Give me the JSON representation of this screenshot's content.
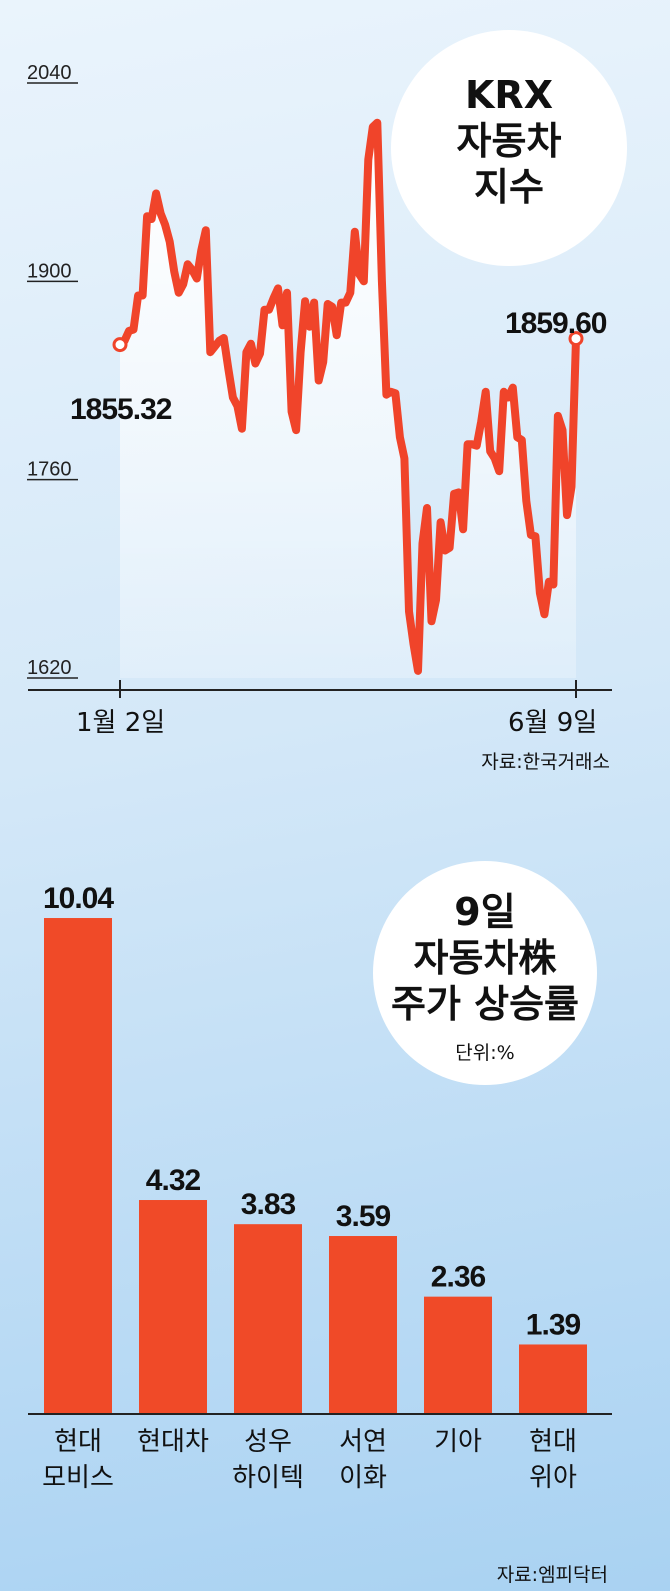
{
  "chart_data": [
    {
      "type": "line",
      "title": "KRX\n자동차\n지수",
      "yticks": [
        2040,
        1900,
        1760,
        1620
      ],
      "ylim": [
        1620,
        2040
      ],
      "x_labels": [
        "1월 2일",
        "6월 9일"
      ],
      "start_label": "1855.32",
      "end_label": "1859.60",
      "source": "자료:한국거래소",
      "values": [
        1855.32,
        1858,
        1865,
        1866,
        1890,
        1890,
        1946,
        1944,
        1962,
        1948,
        1940,
        1928,
        1907,
        1892,
        1898,
        1912,
        1908,
        1902,
        1922,
        1936,
        1850,
        1854,
        1858,
        1860,
        1838,
        1818,
        1812,
        1796,
        1850,
        1856,
        1842,
        1849,
        1880,
        1880,
        1888,
        1895,
        1869,
        1892,
        1808,
        1795,
        1850,
        1886,
        1868,
        1885,
        1830,
        1843,
        1884,
        1882,
        1862,
        1885,
        1885,
        1892,
        1935,
        1905,
        1900,
        1986,
        2009,
        2012,
        1900,
        1820,
        1822,
        1821,
        1790,
        1775,
        1667,
        1644,
        1625,
        1715,
        1740,
        1660,
        1675,
        1730,
        1710,
        1712,
        1750,
        1751,
        1725,
        1785,
        1785,
        1784,
        1801,
        1822,
        1780,
        1775,
        1766,
        1822,
        1818,
        1825,
        1790,
        1788,
        1745,
        1721,
        1720,
        1680,
        1665,
        1688,
        1686,
        1805,
        1795,
        1735,
        1755,
        1859.6
      ]
    },
    {
      "type": "bar",
      "title": "9일\n자동차株\n주가 상승률",
      "unit_label": "단위:%",
      "categories": [
        "현대\n모비스",
        "현대차",
        "성우\n하이텍",
        "서연\n이화",
        "기아",
        "현대\n위아"
      ],
      "values": [
        10.04,
        4.32,
        3.83,
        3.59,
        2.36,
        1.39
      ],
      "value_labels": [
        "10.04",
        "4.32",
        "3.83",
        "3.59",
        "2.36",
        "1.39"
      ],
      "source": "자료:엠피닥터"
    }
  ],
  "colors": {
    "line": "#f0442a",
    "bar": "#f04a28",
    "axis": "#222222",
    "bubble": "#ffffff"
  }
}
